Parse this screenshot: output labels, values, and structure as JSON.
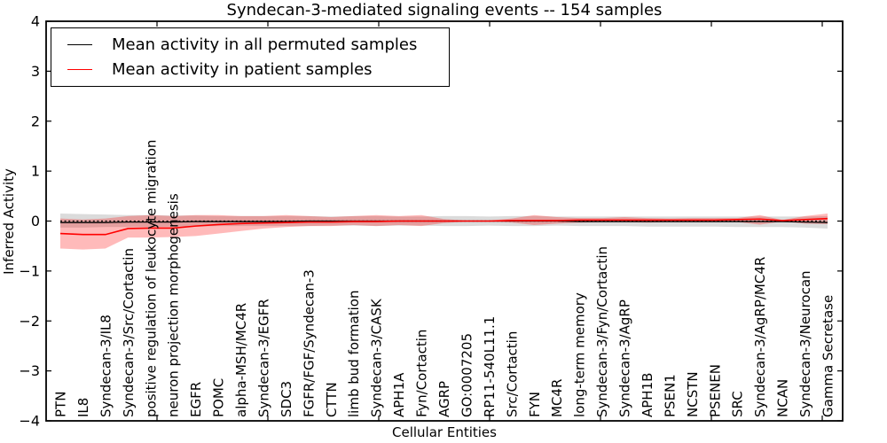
{
  "chart_data": {
    "type": "line",
    "title": "Syndecan-3-mediated signaling events -- 154 samples",
    "xlabel": "Cellular Entities",
    "ylabel": "Inferred Activity",
    "ylim": [
      -4,
      4
    ],
    "yticks": [
      4,
      3,
      2,
      1,
      0,
      -1,
      -2,
      -3,
      -4
    ],
    "grid": false,
    "legend_position": "upper left",
    "zero_line": {
      "style": "dashed",
      "color": "#000000"
    },
    "categories": [
      "PTN",
      "IL8",
      "Syndecan-3/IL8",
      "Syndecan-3/Src/Cortactin",
      "positive regulation of leukocyte migration",
      "neuron projection morphogenesis",
      "EGFR",
      "POMC",
      "alpha-MSH/MC4R",
      "Syndecan-3/EGFR",
      "SDC3",
      "FGFR/FGF/Syndecan-3",
      "CTTN",
      "limb bud formation",
      "Syndecan-3/CASK",
      "APH1A",
      "Fyn/Cortactin",
      "AGRP",
      "GO:0007205",
      "RP11-540L11.1",
      "Src/Cortactin",
      "FYN",
      "MC4R",
      "long-term memory",
      "Syndecan-3/Fyn/Cortactin",
      "Syndecan-3/AgRP",
      "APH1B",
      "PSEN1",
      "NCSTN",
      "PSENEN",
      "SRC",
      "Syndecan-3/AgRP/MC4R",
      "NCAN",
      "Syndecan-3/Neurocan",
      "Gamma Secretase"
    ],
    "series": [
      {
        "name": "Mean activity in all permuted samples",
        "color": "#000000",
        "band_color": "rgba(0,0,0,0.14)",
        "values": [
          -0.03,
          -0.03,
          -0.03,
          -0.02,
          -0.02,
          -0.02,
          -0.01,
          -0.01,
          -0.01,
          -0.01,
          -0.01,
          0,
          0,
          0,
          0,
          0,
          0,
          0,
          0,
          0,
          0,
          0,
          0,
          -0.01,
          -0.01,
          -0.01,
          -0.01,
          -0.01,
          -0.01,
          -0.01,
          -0.01,
          -0.01,
          -0.01,
          -0.02,
          -0.03
        ],
        "band_lower": [
          -0.13,
          -0.13,
          -0.12,
          -0.12,
          -0.12,
          -0.11,
          -0.11,
          -0.1,
          -0.1,
          -0.1,
          -0.1,
          -0.1,
          -0.09,
          -0.09,
          -0.1,
          -0.09,
          -0.09,
          -0.1,
          -0.1,
          -0.09,
          -0.1,
          -0.1,
          -0.09,
          -0.1,
          -0.1,
          -0.1,
          -0.11,
          -0.11,
          -0.11,
          -0.11,
          -0.12,
          -0.12,
          -0.12,
          -0.13,
          -0.15
        ],
        "band_upper": [
          0.15,
          0.14,
          0.13,
          0.12,
          0.12,
          0.11,
          0.11,
          0.1,
          0.1,
          0.1,
          0.1,
          0.1,
          0.09,
          0.1,
          0.1,
          0.09,
          0.09,
          0.1,
          0.1,
          0.09,
          0.1,
          0.1,
          0.09,
          0.09,
          0.09,
          0.09,
          0.09,
          0.09,
          0.09,
          0.09,
          0.09,
          0.09,
          0.09,
          0.09,
          0.1
        ]
      },
      {
        "name": "Mean activity in patient samples",
        "color": "#ff0000",
        "band_color": "rgba(255,0,0,0.27)",
        "values": [
          -0.25,
          -0.27,
          -0.27,
          -0.15,
          -0.14,
          -0.14,
          -0.1,
          -0.07,
          -0.05,
          -0.04,
          -0.03,
          -0.02,
          -0.02,
          -0.01,
          -0.01,
          0,
          0,
          0,
          0,
          0,
          0.01,
          0.01,
          0.01,
          0.02,
          0.02,
          0.02,
          0.02,
          0.02,
          0.02,
          0.02,
          0.03,
          0.04,
          0.01,
          0.03,
          0.05
        ],
        "band_lower": [
          -0.55,
          -0.57,
          -0.55,
          -0.33,
          -0.33,
          -0.32,
          -0.3,
          -0.25,
          -0.2,
          -0.15,
          -0.12,
          -0.1,
          -0.1,
          -0.08,
          -0.1,
          -0.08,
          -0.1,
          -0.04,
          -0.01,
          -0.01,
          -0.03,
          -0.08,
          -0.05,
          -0.03,
          -0.02,
          -0.02,
          -0.03,
          -0.02,
          -0.02,
          -0.02,
          -0.02,
          -0.07,
          -0.01,
          -0.05,
          -0.06
        ],
        "band_upper": [
          0.05,
          0.03,
          0.05,
          0.1,
          0.12,
          0.1,
          0.12,
          0.12,
          0.1,
          0.1,
          0.12,
          0.1,
          0.08,
          0.1,
          0.12,
          0.1,
          0.12,
          0.04,
          0.01,
          0.01,
          0.05,
          0.12,
          0.08,
          0.06,
          0.06,
          0.08,
          0.06,
          0.05,
          0.06,
          0.06,
          0.06,
          0.12,
          0.02,
          0.1,
          0.15
        ]
      }
    ]
  }
}
